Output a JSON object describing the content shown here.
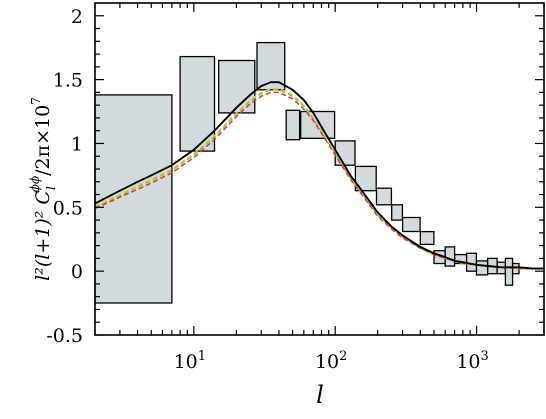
{
  "chart_data": {
    "type": "line",
    "xscale": "log",
    "xlim": [
      2,
      3000
    ],
    "ylim": [
      -0.5,
      2.1
    ],
    "xlabel": "l",
    "ylabel_parts": {
      "main": "l²(l+1)² C",
      "sub": "l",
      "sup": "ϕϕ",
      "tail": "/2π×10",
      "exp": "7"
    },
    "x_ticks": [
      {
        "value": 10,
        "base": "10",
        "exp": "1"
      },
      {
        "value": 100,
        "base": "10",
        "exp": "2"
      },
      {
        "value": 1000,
        "base": "10",
        "exp": "3"
      }
    ],
    "y_ticks": [
      {
        "value": -0.5,
        "label": "-0.5"
      },
      {
        "value": 0,
        "label": "0"
      },
      {
        "value": 0.5,
        "label": "0.5"
      },
      {
        "value": 1,
        "label": "1"
      },
      {
        "value": 1.5,
        "label": "1.5"
      },
      {
        "value": 2,
        "label": "2"
      }
    ],
    "bandpowers": [
      {
        "x0": 2,
        "x1": 7,
        "y0": -0.25,
        "y1": 1.38
      },
      {
        "x0": 8,
        "x1": 14,
        "y0": 0.94,
        "y1": 1.68
      },
      {
        "x0": 15,
        "x1": 27,
        "y0": 1.24,
        "y1": 1.65
      },
      {
        "x0": 28,
        "x1": 44,
        "y0": 1.42,
        "y1": 1.79
      },
      {
        "x0": 45,
        "x1": 56,
        "y0": 1.03,
        "y1": 1.26
      },
      {
        "x0": 57,
        "x1": 99,
        "y0": 1.04,
        "y1": 1.25
      },
      {
        "x0": 100,
        "x1": 138,
        "y0": 0.83,
        "y1": 1.02
      },
      {
        "x0": 139,
        "x1": 195,
        "y0": 0.63,
        "y1": 0.82
      },
      {
        "x0": 196,
        "x1": 250,
        "y0": 0.52,
        "y1": 0.65
      },
      {
        "x0": 251,
        "x1": 299,
        "y0": 0.4,
        "y1": 0.52
      },
      {
        "x0": 300,
        "x1": 399,
        "y0": 0.31,
        "y1": 0.42
      },
      {
        "x0": 400,
        "x1": 499,
        "y0": 0.21,
        "y1": 0.31
      },
      {
        "x0": 500,
        "x1": 599,
        "y0": 0.06,
        "y1": 0.16
      },
      {
        "x0": 600,
        "x1": 699,
        "y0": 0.04,
        "y1": 0.19
      },
      {
        "x0": 700,
        "x1": 850,
        "y0": 0.06,
        "y1": 0.13
      },
      {
        "x0": 851,
        "x1": 999,
        "y0": 0.0,
        "y1": 0.14
      },
      {
        "x0": 1000,
        "x1": 1199,
        "y0": -0.03,
        "y1": 0.08
      },
      {
        "x0": 1200,
        "x1": 1399,
        "y0": -0.02,
        "y1": 0.1
      },
      {
        "x0": 1400,
        "x1": 1599,
        "y0": -0.02,
        "y1": 0.07
      },
      {
        "x0": 1600,
        "x1": 1799,
        "y0": -0.11,
        "y1": 0.1
      },
      {
        "x0": 1800,
        "x1": 1999,
        "y0": -0.02,
        "y1": 0.06
      }
    ],
    "series": [
      {
        "style": "solid",
        "color": "#000000",
        "x": [
          2,
          3,
          4,
          5,
          7,
          10,
          14,
          20,
          25,
          30,
          35,
          40,
          50,
          60,
          70,
          80,
          100,
          130,
          150,
          200,
          250,
          300,
          400,
          500,
          600,
          700,
          800,
          1000,
          1200,
          1500,
          2000,
          2500,
          3000
        ],
        "y": [
          0.53,
          0.63,
          0.7,
          0.75,
          0.83,
          0.95,
          1.1,
          1.28,
          1.38,
          1.45,
          1.48,
          1.48,
          1.42,
          1.34,
          1.24,
          1.13,
          0.95,
          0.74,
          0.65,
          0.46,
          0.35,
          0.28,
          0.19,
          0.14,
          0.11,
          0.08,
          0.07,
          0.05,
          0.04,
          0.03,
          0.03,
          0.02,
          0.02
        ]
      },
      {
        "style": "dashed",
        "color": "#e8cf2a",
        "x": [
          2,
          3,
          4,
          5,
          7,
          10,
          14,
          20,
          25,
          30,
          35,
          40,
          50,
          60,
          70,
          80,
          100,
          130,
          150,
          200,
          250,
          300,
          400,
          500,
          600,
          700,
          800,
          1000,
          1200,
          1500,
          2000,
          2500,
          3000
        ],
        "y": [
          0.51,
          0.6,
          0.67,
          0.72,
          0.8,
          0.92,
          1.06,
          1.24,
          1.34,
          1.4,
          1.43,
          1.43,
          1.38,
          1.3,
          1.2,
          1.1,
          0.93,
          0.72,
          0.63,
          0.44,
          0.34,
          0.27,
          0.18,
          0.13,
          0.1,
          0.08,
          0.06,
          0.05,
          0.04,
          0.03,
          0.02,
          0.02,
          0.02
        ]
      },
      {
        "style": "dashed",
        "color": "#7ac943",
        "x": [
          2,
          3,
          4,
          5,
          7,
          10,
          14,
          20,
          25,
          30,
          35,
          40,
          50,
          60,
          70,
          80,
          100,
          130,
          150,
          200,
          250,
          300,
          400,
          500,
          600,
          700,
          800,
          1000,
          1200,
          1500,
          2000,
          2500,
          3000
        ],
        "y": [
          0.5,
          0.59,
          0.66,
          0.71,
          0.79,
          0.91,
          1.05,
          1.23,
          1.33,
          1.39,
          1.42,
          1.42,
          1.37,
          1.29,
          1.19,
          1.09,
          0.92,
          0.72,
          0.63,
          0.44,
          0.34,
          0.27,
          0.18,
          0.13,
          0.1,
          0.08,
          0.06,
          0.05,
          0.04,
          0.03,
          0.02,
          0.02,
          0.02
        ]
      },
      {
        "style": "dashed",
        "color": "#e8332a",
        "x": [
          2,
          3,
          4,
          5,
          7,
          10,
          14,
          20,
          25,
          30,
          35,
          40,
          50,
          60,
          70,
          80,
          100,
          130,
          150,
          200,
          250,
          300,
          400,
          500,
          600,
          700,
          800,
          1000,
          1200,
          1500,
          2000,
          2500,
          3000
        ],
        "y": [
          0.49,
          0.58,
          0.64,
          0.69,
          0.77,
          0.89,
          1.03,
          1.21,
          1.31,
          1.37,
          1.4,
          1.4,
          1.35,
          1.27,
          1.18,
          1.08,
          0.91,
          0.71,
          0.62,
          0.43,
          0.33,
          0.26,
          0.18,
          0.13,
          0.1,
          0.08,
          0.06,
          0.05,
          0.04,
          0.03,
          0.02,
          0.02,
          0.02
        ]
      }
    ],
    "colors": {
      "box_fill": "#d3dadb",
      "box_stroke": "#000000",
      "axis": "#000000"
    }
  }
}
